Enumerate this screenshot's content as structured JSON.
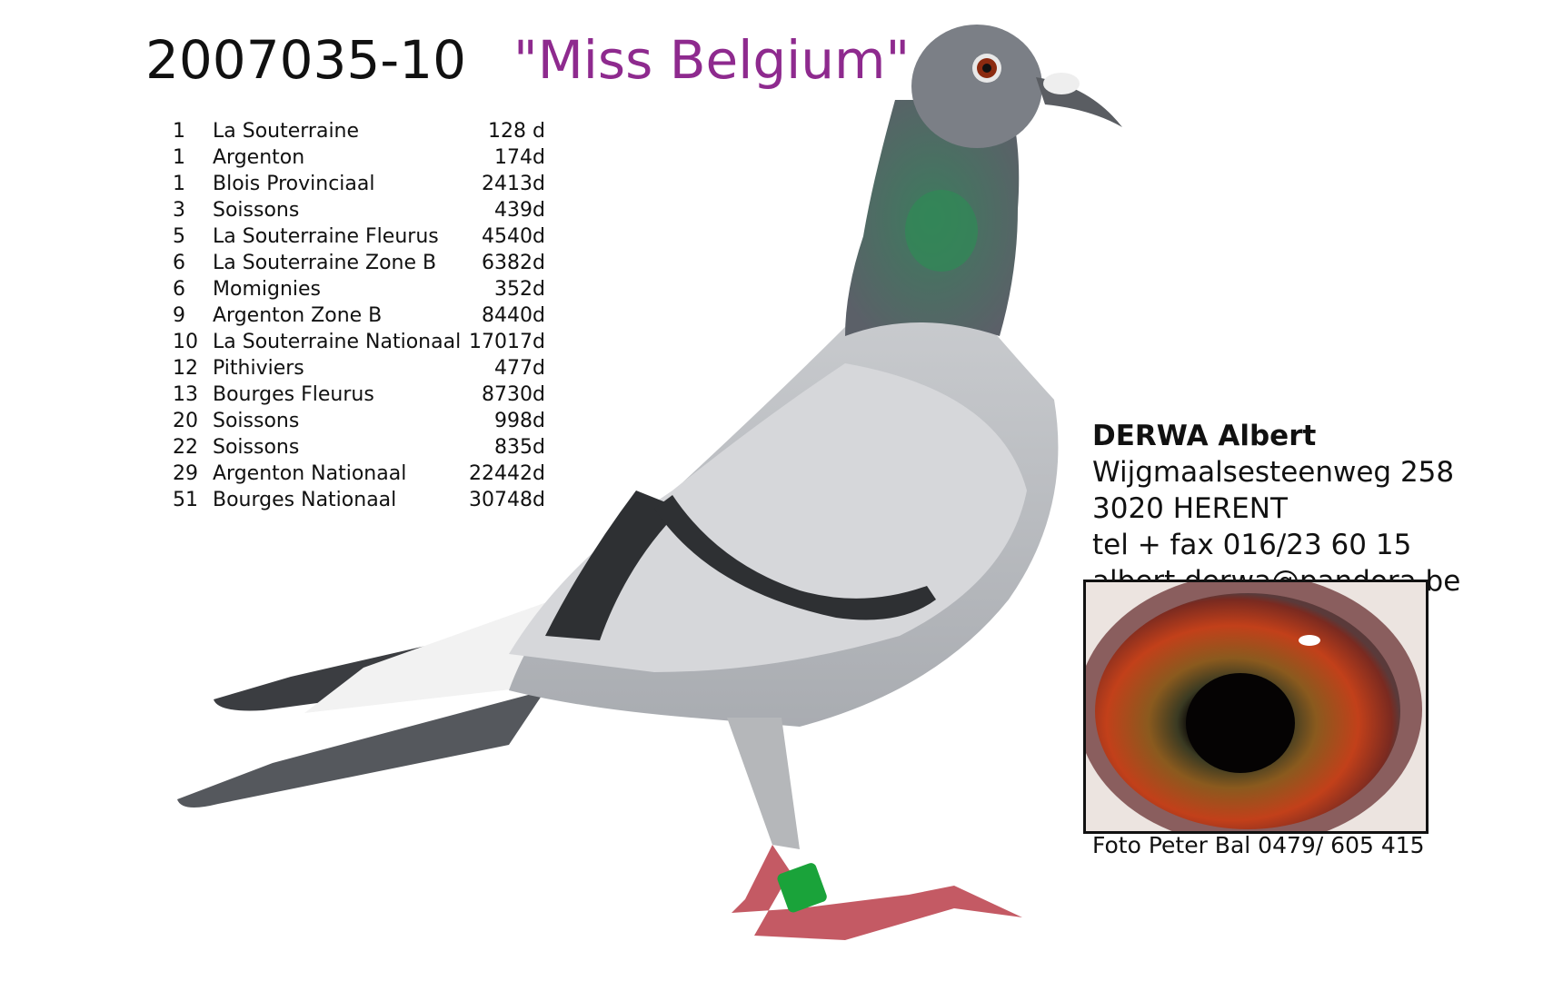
{
  "header": {
    "ring_number": "2007035-10",
    "pigeon_name": "\"Miss Belgium\"",
    "name_color": "#8e2a8e"
  },
  "results": [
    {
      "rank": "1",
      "race": "La Souterraine",
      "points": "128 d"
    },
    {
      "rank": "1",
      "race": "Argenton",
      "points": "174d"
    },
    {
      "rank": "1",
      "race": "Blois Provinciaal",
      "points": "2413d"
    },
    {
      "rank": "3",
      "race": "Soissons",
      "points": "439d"
    },
    {
      "rank": "5",
      "race": "La Souterraine  Fleurus",
      "points": "4540d"
    },
    {
      "rank": "6",
      "race": "La Souterraine Zone B",
      "points": "6382d"
    },
    {
      "rank": "6",
      "race": "Momignies",
      "points": "352d"
    },
    {
      "rank": "9",
      "race": "Argenton Zone B",
      "points": "8440d"
    },
    {
      "rank": "10",
      "race": "La Souterraine Nationaal",
      "points": "17017d"
    },
    {
      "rank": "12",
      "race": "Pithiviers",
      "points": "477d"
    },
    {
      "rank": "13",
      "race": "Bourges Fleurus",
      "points": "8730d"
    },
    {
      "rank": "20",
      "race": "Soissons",
      "points": "998d"
    },
    {
      "rank": "22",
      "race": "Soissons",
      "points": "835d"
    },
    {
      "rank": "29",
      "race": "Argenton Nationaal",
      "points": "22442d"
    },
    {
      "rank": "51",
      "race": "Bourges  Nationaal",
      "points": "30748d"
    }
  ],
  "contact": {
    "owner": "DERWA Albert",
    "street": "Wijgmaalsesteenweg 258",
    "city": "3020 HERENT",
    "phone": "tel + fax 016/23 60 15",
    "email": "albert.derwa@pandora.be"
  },
  "photo_credit": "Foto Peter Bal 0479/ 605 415"
}
